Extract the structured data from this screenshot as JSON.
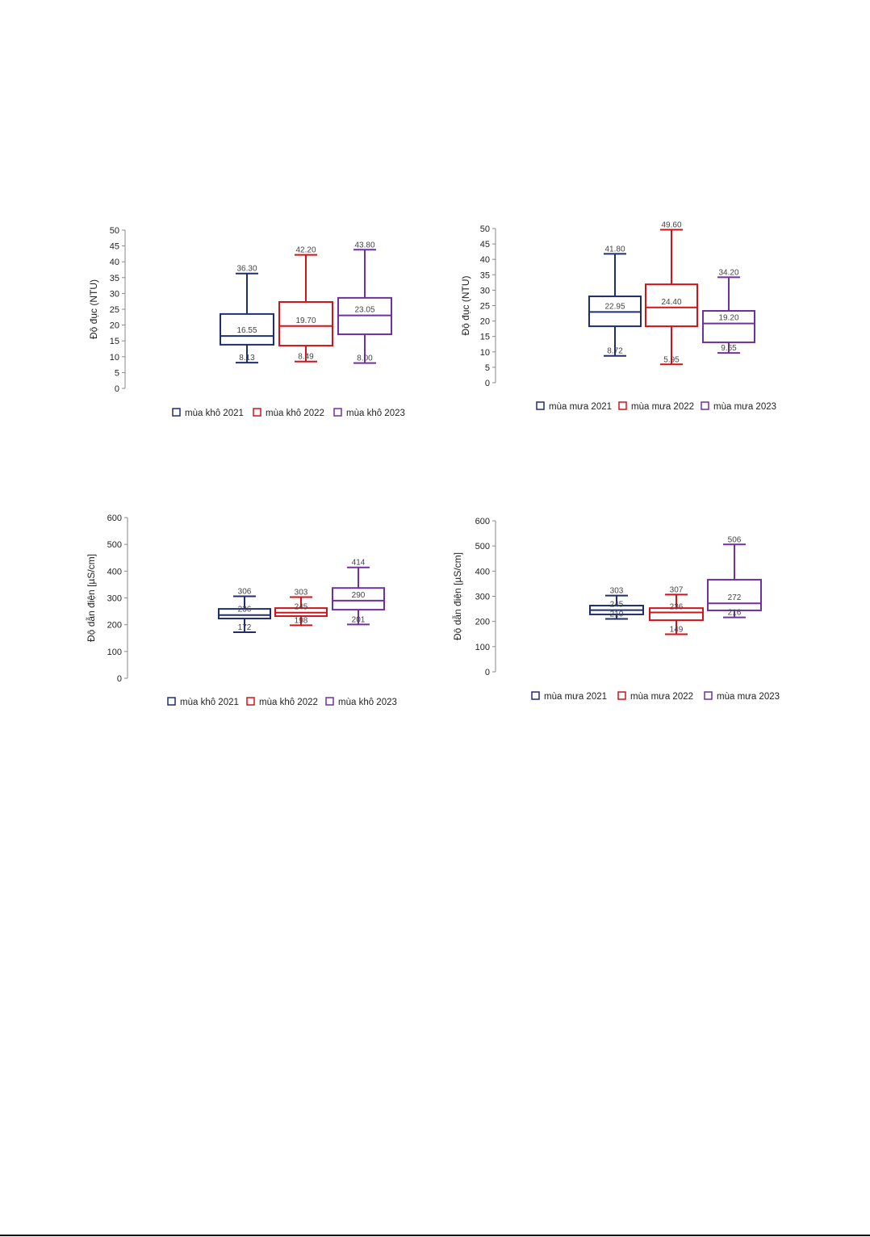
{
  "colors": [
    "#1f2f6e",
    "#d0141a",
    "#7030a0"
  ],
  "chart_data": [
    {
      "type": "boxplot",
      "ylabel": "Độ đục (NTU)",
      "ylim": [
        0,
        50
      ],
      "yticks": [
        0,
        5,
        10,
        15,
        20,
        25,
        30,
        35,
        40,
        45,
        50
      ],
      "series": [
        {
          "name": "mùa khô 2021",
          "min": 8.13,
          "q1": 13.8,
          "median": 16.55,
          "q3": 23.5,
          "max": 36.3,
          "labels": {
            "min": "8.13",
            "median": "16.55",
            "max": "36.30"
          }
        },
        {
          "name": "mùa khô 2022",
          "min": 8.49,
          "q1": 13.5,
          "median": 19.7,
          "q3": 27.3,
          "max": 42.2,
          "labels": {
            "min": "8.49",
            "median": "19.70",
            "max": "42.20"
          }
        },
        {
          "name": "mùa khô 2023",
          "min": 8.0,
          "q1": 17.1,
          "median": 23.05,
          "q3": 28.6,
          "max": 43.8,
          "labels": {
            "min": "8.00",
            "median": "23.05",
            "max": "43.80"
          }
        }
      ],
      "legend": "bottom"
    },
    {
      "type": "boxplot",
      "ylabel": "Độ đục (NTU)",
      "ylim": [
        0,
        50
      ],
      "yticks": [
        0,
        5,
        10,
        15,
        20,
        25,
        30,
        35,
        40,
        45,
        50
      ],
      "series": [
        {
          "name": "mùa mưa 2021",
          "min": 8.72,
          "q1": 18.3,
          "median": 22.95,
          "q3": 28.0,
          "max": 41.8,
          "labels": {
            "min": "8.72",
            "median": "22.95",
            "max": "41.80"
          }
        },
        {
          "name": "mùa mưa 2022",
          "min": 5.95,
          "q1": 18.3,
          "median": 24.4,
          "q3": 31.9,
          "max": 49.6,
          "labels": {
            "min": "5.95",
            "median": "24.40",
            "max": "49.60"
          }
        },
        {
          "name": "mùa mưa 2023",
          "min": 9.65,
          "q1": 13.1,
          "median": 19.2,
          "q3": 23.3,
          "max": 34.2,
          "labels": {
            "min": "9.65",
            "median": "19.20",
            "max": "34.20"
          }
        }
      ],
      "legend": "bottom"
    },
    {
      "type": "boxplot",
      "ylabel": "Độ dẫn điện [µS/cm]",
      "ylim": [
        0,
        600
      ],
      "yticks": [
        0,
        100,
        200,
        300,
        400,
        500,
        600
      ],
      "series": [
        {
          "name": "mùa khô 2021",
          "min": 172,
          "q1": 223,
          "median": 236,
          "q3": 259,
          "max": 306,
          "labels": {
            "min": "172",
            "median": "236",
            "max": "306"
          }
        },
        {
          "name": "mùa khô 2022",
          "min": 198,
          "q1": 232,
          "median": 245,
          "q3": 262,
          "max": 303,
          "labels": {
            "min": "198",
            "median": "245",
            "max": "303"
          }
        },
        {
          "name": "mùa khô 2023",
          "min": 201,
          "q1": 256,
          "median": 290,
          "q3": 337,
          "max": 414,
          "labels": {
            "min": "201",
            "median": "290",
            "max": "414"
          }
        }
      ],
      "legend": "bottom"
    },
    {
      "type": "boxplot",
      "ylabel": "Độ dẫn điện [µS/cm]",
      "ylim": [
        0,
        600
      ],
      "yticks": [
        0,
        100,
        200,
        300,
        400,
        500,
        600
      ],
      "series": [
        {
          "name": "mùa mưa 2021",
          "min": 210,
          "q1": 228,
          "median": 245,
          "q3": 263,
          "max": 303,
          "labels": {
            "min": "210",
            "median": "245",
            "max": "303"
          }
        },
        {
          "name": "mùa mưa 2022",
          "min": 149,
          "q1": 205,
          "median": 236,
          "q3": 253,
          "max": 307,
          "labels": {
            "min": "149",
            "median": "236",
            "max": "307"
          }
        },
        {
          "name": "mùa mưa 2023",
          "min": 216,
          "q1": 244,
          "median": 272,
          "q3": 366,
          "max": 506,
          "labels": {
            "min": "216",
            "median": "272",
            "max": "506"
          }
        }
      ],
      "legend": "bottom"
    }
  ]
}
